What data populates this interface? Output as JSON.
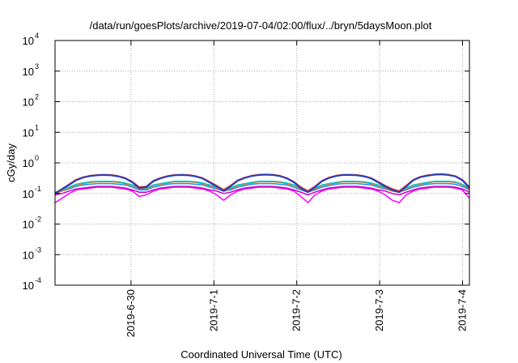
{
  "chart_data": {
    "type": "line",
    "title": "/data/run/goesPlots/archive/2019-07-04/02:00/flux/../bryn/5daysMoon.plot",
    "xlabel": "Coordinated Universal Time (UTC)",
    "ylabel": "cGy/day",
    "yscale": "log",
    "ylim": [
      0.0001,
      10000
    ],
    "xlim": [
      "2019-06-29T02:00",
      "2019-07-04T02:00"
    ],
    "grid": true,
    "y_ticks": [
      {
        "base": "10",
        "exp": "-4",
        "value": 0.0001
      },
      {
        "base": "10",
        "exp": "-3",
        "value": 0.001
      },
      {
        "base": "10",
        "exp": "-2",
        "value": 0.01
      },
      {
        "base": "10",
        "exp": "-1",
        "value": 0.1
      },
      {
        "base": "10",
        "exp": "0",
        "value": 1
      },
      {
        "base": "10",
        "exp": "1",
        "value": 10
      },
      {
        "base": "10",
        "exp": "2",
        "value": 100
      },
      {
        "base": "10",
        "exp": "3",
        "value": 1000
      },
      {
        "base": "10",
        "exp": "4",
        "value": 10000
      }
    ],
    "x_ticks": [
      {
        "label": "2019-6-30",
        "value": "2019-06-30T00:00"
      },
      {
        "label": "2019-7-1",
        "value": "2019-07-01T00:00"
      },
      {
        "label": "2019-7-2",
        "value": "2019-07-02T00:00"
      },
      {
        "label": "2019-7-3",
        "value": "2019-07-03T00:00"
      },
      {
        "label": "2019-7-4",
        "value": "2019-07-04T00:00"
      }
    ],
    "series": [
      {
        "color": "#ff00ff",
        "profile": [
          0.05,
          0.07,
          0.1,
          0.13,
          0.14,
          0.15,
          0.16,
          0.16,
          0.16,
          0.15,
          0.14,
          0.12,
          0.08,
          0.09,
          0.12,
          0.14,
          0.15,
          0.16,
          0.16,
          0.16,
          0.15,
          0.14,
          0.12,
          0.09,
          0.06,
          0.09,
          0.12,
          0.14,
          0.15,
          0.16,
          0.16,
          0.16,
          0.15,
          0.14,
          0.12,
          0.08,
          0.05,
          0.09,
          0.12,
          0.14,
          0.15,
          0.16,
          0.16,
          0.16,
          0.15,
          0.14,
          0.12,
          0.09,
          0.06,
          0.05,
          0.09,
          0.12,
          0.14,
          0.15,
          0.16,
          0.16,
          0.16,
          0.15,
          0.13,
          0.07
        ]
      },
      {
        "color": "#c800c8",
        "profile": [
          0.09,
          0.1,
          0.12,
          0.14,
          0.15,
          0.16,
          0.17,
          0.17,
          0.17,
          0.16,
          0.15,
          0.13,
          0.11,
          0.11,
          0.13,
          0.15,
          0.16,
          0.17,
          0.17,
          0.17,
          0.16,
          0.15,
          0.13,
          0.12,
          0.1,
          0.11,
          0.13,
          0.15,
          0.16,
          0.17,
          0.17,
          0.17,
          0.16,
          0.15,
          0.13,
          0.11,
          0.09,
          0.11,
          0.13,
          0.15,
          0.16,
          0.17,
          0.17,
          0.17,
          0.16,
          0.15,
          0.13,
          0.12,
          0.1,
          0.09,
          0.11,
          0.13,
          0.15,
          0.16,
          0.17,
          0.17,
          0.17,
          0.16,
          0.14,
          0.11
        ]
      },
      {
        "color": "#1e90ff",
        "profile": [
          0.1,
          0.12,
          0.14,
          0.17,
          0.19,
          0.2,
          0.21,
          0.21,
          0.21,
          0.2,
          0.19,
          0.16,
          0.13,
          0.13,
          0.16,
          0.18,
          0.2,
          0.21,
          0.21,
          0.21,
          0.2,
          0.19,
          0.16,
          0.14,
          0.12,
          0.13,
          0.16,
          0.18,
          0.2,
          0.21,
          0.21,
          0.21,
          0.2,
          0.19,
          0.16,
          0.13,
          0.11,
          0.13,
          0.16,
          0.18,
          0.2,
          0.21,
          0.21,
          0.21,
          0.2,
          0.19,
          0.16,
          0.14,
          0.12,
          0.11,
          0.13,
          0.16,
          0.18,
          0.2,
          0.21,
          0.21,
          0.21,
          0.2,
          0.17,
          0.13
        ]
      },
      {
        "color": "#ff6a00",
        "profile": [
          0.1,
          0.12,
          0.15,
          0.19,
          0.21,
          0.23,
          0.24,
          0.24,
          0.24,
          0.23,
          0.21,
          0.18,
          0.14,
          0.14,
          0.18,
          0.2,
          0.22,
          0.24,
          0.24,
          0.24,
          0.23,
          0.21,
          0.18,
          0.15,
          0.12,
          0.14,
          0.18,
          0.2,
          0.22,
          0.24,
          0.24,
          0.24,
          0.23,
          0.21,
          0.18,
          0.14,
          0.11,
          0.14,
          0.18,
          0.2,
          0.22,
          0.24,
          0.24,
          0.24,
          0.23,
          0.21,
          0.18,
          0.15,
          0.12,
          0.11,
          0.14,
          0.18,
          0.2,
          0.22,
          0.24,
          0.24,
          0.24,
          0.23,
          0.19,
          0.14
        ]
      },
      {
        "color": "#00c8c8",
        "profile": [
          0.11,
          0.13,
          0.16,
          0.2,
          0.22,
          0.24,
          0.25,
          0.25,
          0.25,
          0.24,
          0.22,
          0.19,
          0.15,
          0.15,
          0.19,
          0.21,
          0.23,
          0.25,
          0.25,
          0.25,
          0.24,
          0.22,
          0.19,
          0.16,
          0.13,
          0.15,
          0.19,
          0.21,
          0.23,
          0.25,
          0.25,
          0.25,
          0.24,
          0.22,
          0.19,
          0.15,
          0.12,
          0.15,
          0.19,
          0.21,
          0.23,
          0.25,
          0.25,
          0.25,
          0.24,
          0.22,
          0.19,
          0.16,
          0.13,
          0.12,
          0.15,
          0.19,
          0.21,
          0.23,
          0.25,
          0.25,
          0.25,
          0.24,
          0.2,
          0.15
        ]
      },
      {
        "color": "#e8312f",
        "profile": [
          0.1,
          0.14,
          0.2,
          0.28,
          0.34,
          0.38,
          0.4,
          0.41,
          0.4,
          0.37,
          0.32,
          0.24,
          0.16,
          0.17,
          0.26,
          0.32,
          0.37,
          0.4,
          0.41,
          0.4,
          0.37,
          0.32,
          0.24,
          0.18,
          0.13,
          0.18,
          0.27,
          0.33,
          0.38,
          0.41,
          0.42,
          0.41,
          0.38,
          0.32,
          0.24,
          0.16,
          0.12,
          0.17,
          0.26,
          0.33,
          0.38,
          0.41,
          0.41,
          0.4,
          0.37,
          0.32,
          0.24,
          0.18,
          0.14,
          0.12,
          0.18,
          0.28,
          0.35,
          0.39,
          0.42,
          0.43,
          0.41,
          0.37,
          0.28,
          0.16
        ]
      },
      {
        "color": "#1f3fbf",
        "profile": [
          0.1,
          0.14,
          0.19,
          0.27,
          0.33,
          0.37,
          0.39,
          0.4,
          0.39,
          0.36,
          0.31,
          0.23,
          0.15,
          0.16,
          0.25,
          0.31,
          0.36,
          0.39,
          0.4,
          0.39,
          0.36,
          0.31,
          0.23,
          0.17,
          0.12,
          0.17,
          0.26,
          0.32,
          0.37,
          0.4,
          0.41,
          0.4,
          0.37,
          0.31,
          0.23,
          0.15,
          0.11,
          0.16,
          0.25,
          0.32,
          0.37,
          0.4,
          0.4,
          0.39,
          0.36,
          0.31,
          0.23,
          0.17,
          0.13,
          0.11,
          0.17,
          0.27,
          0.34,
          0.38,
          0.41,
          0.42,
          0.4,
          0.36,
          0.27,
          0.15
        ]
      }
    ]
  }
}
